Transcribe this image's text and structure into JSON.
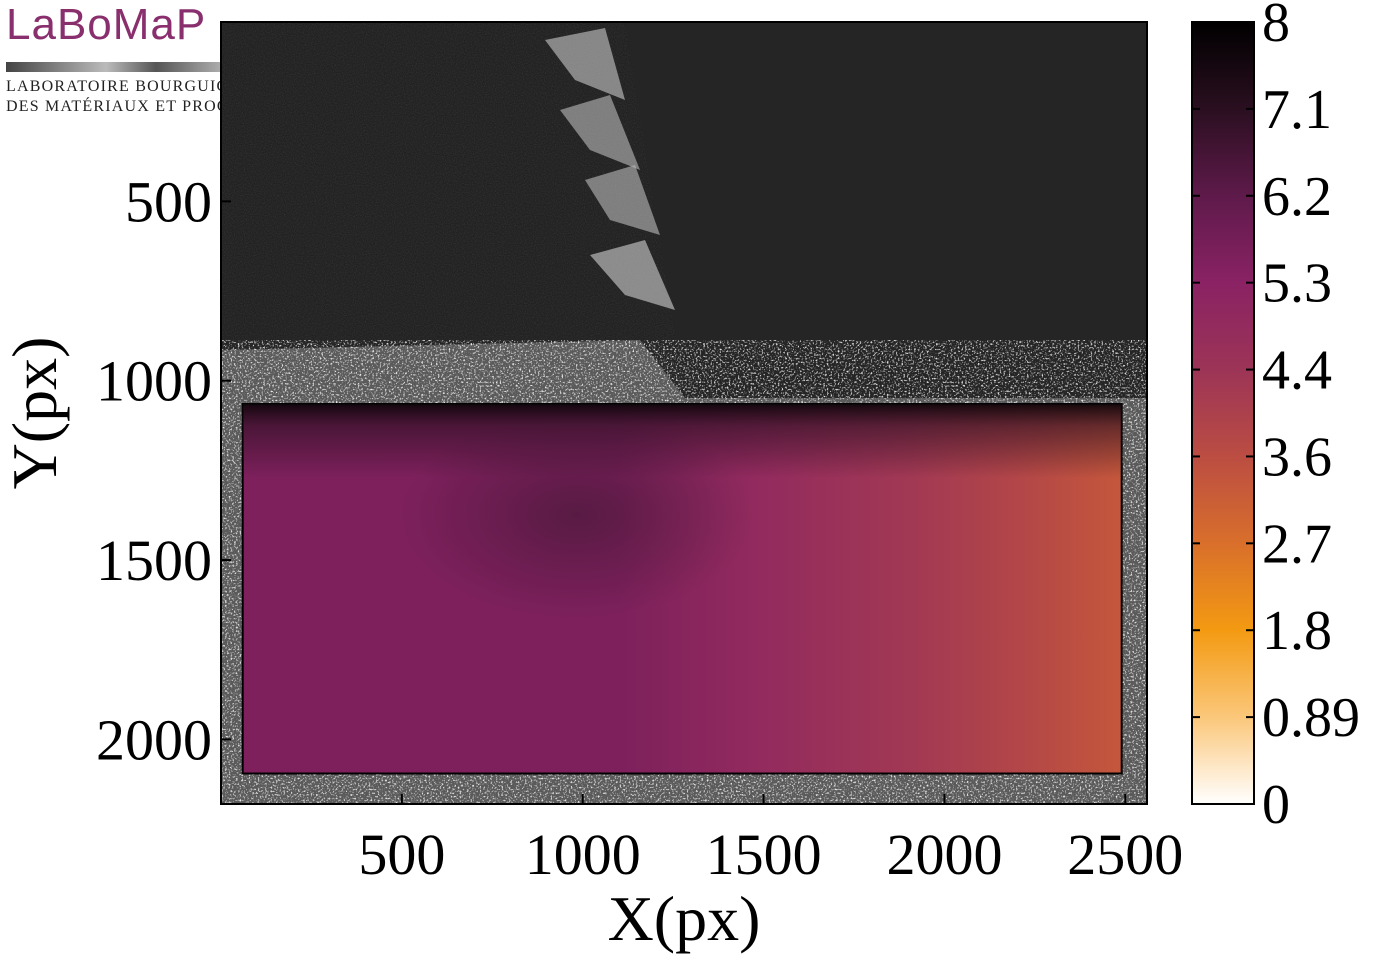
{
  "logo": {
    "word": "LaBoMaP",
    "line1": "Laboratoire Bourguignon",
    "line2": "des Matériaux et Procédés"
  },
  "chart_data": {
    "type": "heatmap",
    "title": "",
    "xlabel": "X(px)",
    "ylabel": "Y(px)",
    "xlim": [
      0,
      2560
    ],
    "ylim": [
      2180,
      0
    ],
    "x_ticks": [
      500,
      1000,
      1500,
      2000,
      2500
    ],
    "y_ticks": [
      500,
      1000,
      1500,
      2000
    ],
    "data_region": {
      "x": [
        60,
        2490
      ],
      "y": [
        1065,
        2095
      ]
    },
    "background": "grayscale camera image of the specimen",
    "colorbar": {
      "ticks": [
        "8",
        "7.1",
        "6.2",
        "5.3",
        "4.4",
        "3.6",
        "2.7",
        "1.8",
        "0.89",
        "0"
      ],
      "min": 0,
      "max": 8,
      "colors": [
        "#ffffff",
        "#fbc77a",
        "#f39a12",
        "#d96f2b",
        "#bb4d42",
        "#9c3457",
        "#8a2264",
        "#5e1a4a",
        "#2a0f20",
        "#000000"
      ]
    },
    "field_profile": [
      {
        "x": 60,
        "value": 5.6
      },
      {
        "x": 1100,
        "value": 5.6
      },
      {
        "x": 1500,
        "value": 4.9
      },
      {
        "x": 1900,
        "value": 4.3
      },
      {
        "x": 2200,
        "value": 3.8
      },
      {
        "x": 2490,
        "value": 3.3
      }
    ]
  }
}
